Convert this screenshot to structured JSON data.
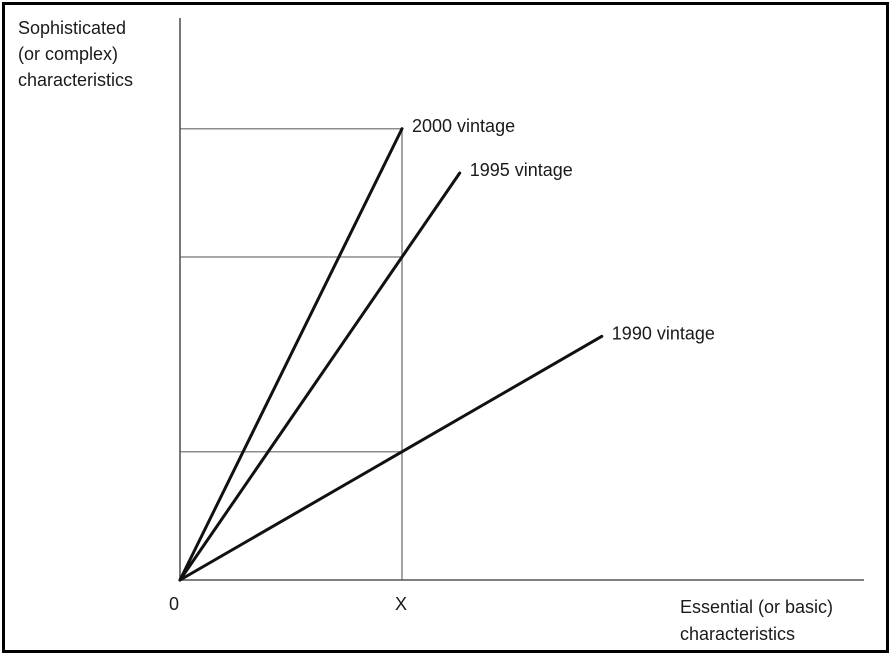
{
  "chart_data": {
    "type": "line",
    "title": "",
    "ylabel_lines": [
      "Sophisticated",
      "(or complex)",
      "characteristics"
    ],
    "xlabel_lines": [
      "Essential (or basic)",
      "characteristics"
    ],
    "origin_label": "0",
    "x_marker_label": "X",
    "x_marker": 1,
    "x_range": [
      0,
      3.0
    ],
    "y_range": [
      0,
      2.0
    ],
    "grid": false,
    "reference_lines_y": [
      0.54,
      1.36,
      1.9
    ],
    "series": [
      {
        "name": "2000 vintage",
        "slope": 1.9,
        "x_end": 1.0,
        "label": "2000 vintage"
      },
      {
        "name": "1995 vintage",
        "slope": 1.36,
        "x_end": 1.26,
        "label": "1995 vintage"
      },
      {
        "name": "1990 vintage",
        "slope": 0.54,
        "x_end": 1.9,
        "label": "1990 vintage"
      }
    ],
    "line_color": "#111111",
    "axis_color": "#555555",
    "guide_color": "#8c8c8c"
  }
}
